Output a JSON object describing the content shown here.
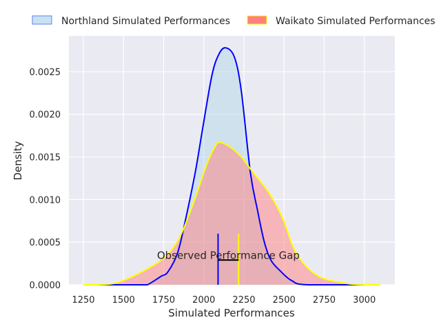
{
  "chart_data": {
    "type": "area",
    "title": "",
    "xlabel": "Simulated Performances",
    "ylabel": "Density",
    "xlim": [
      1160,
      3190
    ],
    "ylim": [
      0,
      0.00292
    ],
    "xticks": [
      1250,
      1500,
      1750,
      2000,
      2250,
      2500,
      2750,
      3000
    ],
    "xtick_labels": [
      "1250",
      "1500",
      "1750",
      "2000",
      "2250",
      "2500",
      "2750",
      "3000"
    ],
    "yticks": [
      0,
      0.0005,
      0.001,
      0.0015,
      0.002,
      0.0025
    ],
    "ytick_labels": [
      "0.0000",
      "0.0005",
      "0.0010",
      "0.0015",
      "0.0020",
      "0.0025"
    ],
    "grid": true,
    "legend_position": "top-center, outside",
    "series": [
      {
        "name": "Northland Simulated Performances",
        "line_color": "#0000ff",
        "fill_color": "#add8e6",
        "x": [
          1250,
          1600,
          1648,
          1734,
          1776,
          1836,
          1879,
          1947,
          1990,
          2050,
          2093,
          2136,
          2191,
          2234,
          2290,
          2333,
          2376,
          2418,
          2478,
          2547,
          2649,
          3100
        ],
        "y": [
          0,
          0,
          0,
          0.0001,
          0.00015,
          0.00037,
          0.0007,
          0.00132,
          0.0018,
          0.00245,
          0.0027,
          0.00278,
          0.00267,
          0.00227,
          0.00132,
          0.00089,
          0.00051,
          0.00029,
          0.00016,
          5e-05,
          0,
          0
        ]
      },
      {
        "name": "Waikato Simulated Performances",
        "line_color": "#ffff00",
        "fill_color": "#ff7f7f",
        "x": [
          1250,
          1335,
          1451,
          1592,
          1734,
          1836,
          1922,
          2020,
          2076,
          2102,
          2161,
          2234,
          2306,
          2405,
          2491,
          2576,
          2705,
          2876,
          3004,
          3100
        ],
        "y": [
          0,
          0,
          2e-05,
          0.00013,
          0.00029,
          0.00051,
          0.00089,
          0.00142,
          0.00164,
          0.00167,
          0.00162,
          0.0015,
          0.00132,
          0.00108,
          0.00078,
          0.00037,
          0.00011,
          2e-05,
          0,
          0
        ]
      }
    ],
    "annotations": [
      {
        "type": "vline",
        "x": 2089,
        "y_range": [
          0,
          0.0006
        ],
        "color": "#0000ff"
      },
      {
        "type": "vline",
        "x": 2217,
        "y_range": [
          0,
          0.0006
        ],
        "color": "#ffff00"
      },
      {
        "type": "hline",
        "x_range": [
          2089,
          2217
        ],
        "y": 0.00029,
        "color": "#000000"
      },
      {
        "type": "text",
        "text": "Observed Performance Gap",
        "x": 2153,
        "y": 0.00031
      }
    ]
  }
}
